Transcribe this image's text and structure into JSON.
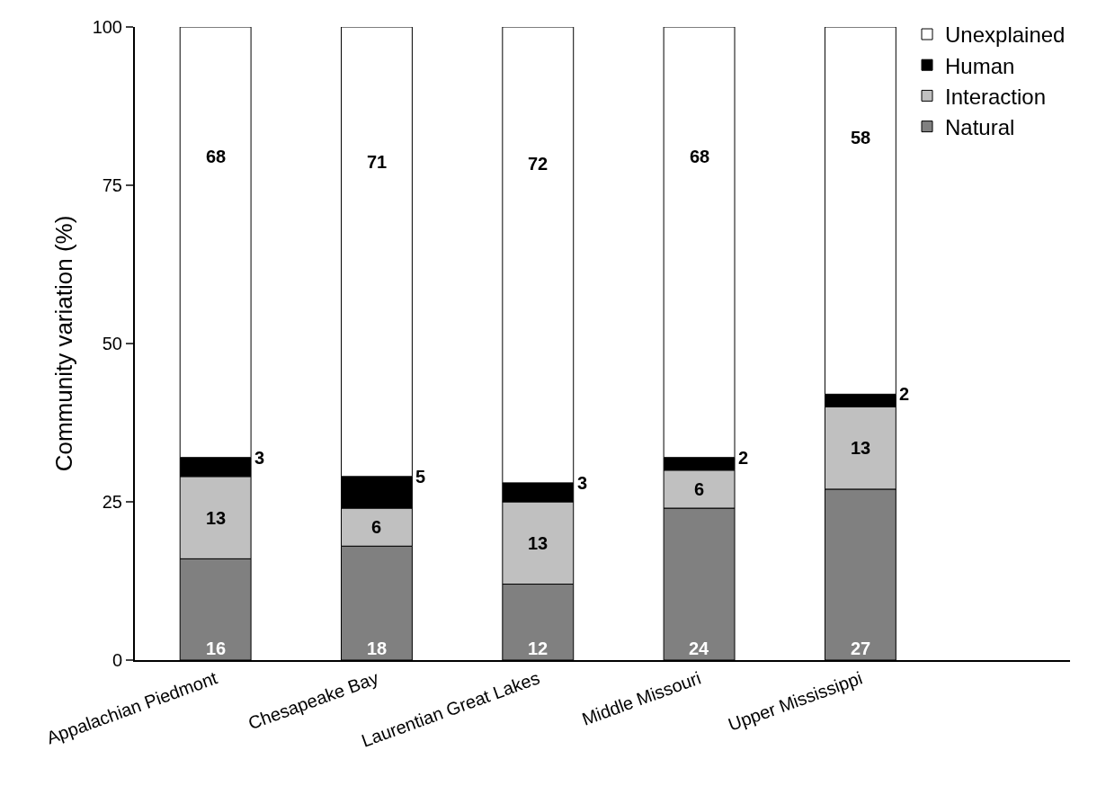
{
  "chart_data": {
    "type": "bar",
    "stacked": true,
    "ylabel": "Community variation (%)",
    "categories": [
      "Appalachian Piedmont",
      "Chesapeake Bay",
      "Laurentian Great Lakes",
      "Middle Missouri",
      "Upper Mississippi"
    ],
    "series": [
      {
        "name": "Natural",
        "color": "#808080",
        "values": [
          16,
          18,
          12,
          24,
          27
        ]
      },
      {
        "name": "Interaction",
        "color": "#c0c0c0",
        "values": [
          13,
          6,
          13,
          6,
          13
        ]
      },
      {
        "name": "Human",
        "color": "#000000",
        "values": [
          3,
          5,
          3,
          2,
          2
        ]
      },
      {
        "name": "Unexplained",
        "color": "#ffffff",
        "values": [
          68,
          71,
          72,
          68,
          58
        ]
      }
    ],
    "ylim": [
      0,
      100
    ],
    "yticks": [
      0,
      25,
      50,
      75,
      100
    ],
    "legend": "top right",
    "data_labels": true
  }
}
